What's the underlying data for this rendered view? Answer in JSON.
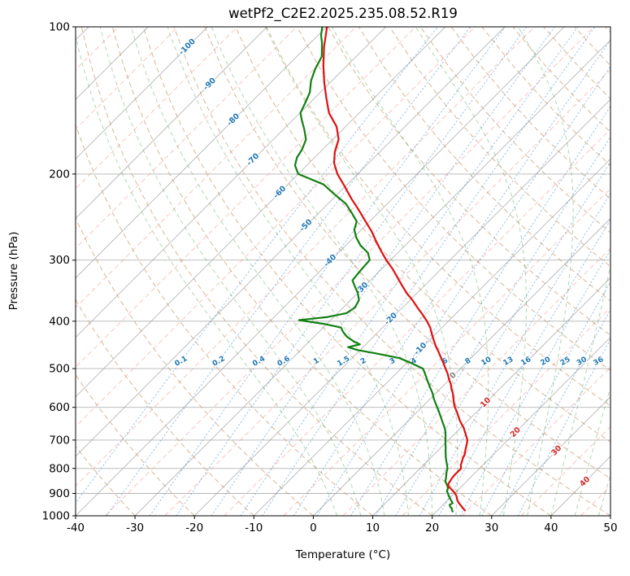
{
  "title": "wetPf2_C2E2.2025.235.08.52.R19",
  "axes": {
    "xlabel": "Temperature (°C)",
    "ylabel": "Pressure (hPa)",
    "xlim_c": [
      -40,
      50
    ],
    "ylim_hpa": [
      1000,
      100
    ],
    "x_ticks_c": [
      -40,
      -30,
      -20,
      -10,
      0,
      10,
      20,
      30,
      40,
      50
    ],
    "y_ticks_hpa": [
      100,
      200,
      300,
      400,
      500,
      600,
      700,
      800,
      900,
      1000
    ]
  },
  "chart_data": {
    "type": "line",
    "subtype": "skew-t-log-p",
    "title": "wetPf2_C2E2.2025.235.08.52.R19",
    "skew_deg": 45,
    "grid": true,
    "style": {
      "background": "#ffffff",
      "pressure_grid_color": "#b5b5b5",
      "isotherm_color": "#a0a0a0",
      "isotherm_minor_color": "#ef8e80",
      "mixing_color": "#4a90c8",
      "mixing_label_color": "#2077b4",
      "border_color": "#000000"
    },
    "series": [
      {
        "name": "temperature",
        "color": "#e01010",
        "points_p_t": [
          [
            975,
            24.6
          ],
          [
            965,
            23.9
          ],
          [
            950,
            22.9
          ],
          [
            938,
            22.1
          ],
          [
            925,
            21.4
          ],
          [
            912,
            20.8
          ],
          [
            900,
            20.1
          ],
          [
            888,
            19.2
          ],
          [
            878,
            18.4
          ],
          [
            868,
            17.6
          ],
          [
            858,
            17.3
          ],
          [
            850,
            17.2
          ],
          [
            838,
            17.0
          ],
          [
            825,
            16.9
          ],
          [
            810,
            16.9
          ],
          [
            800,
            16.9
          ],
          [
            788,
            16.3
          ],
          [
            775,
            15.9
          ],
          [
            760,
            15.4
          ],
          [
            750,
            15.2
          ],
          [
            738,
            14.7
          ],
          [
            725,
            14.2
          ],
          [
            712,
            13.7
          ],
          [
            700,
            13.2
          ],
          [
            688,
            12.4
          ],
          [
            675,
            11.5
          ],
          [
            662,
            10.6
          ],
          [
            650,
            9.6
          ],
          [
            638,
            8.6
          ],
          [
            625,
            7.6
          ],
          [
            612,
            6.6
          ],
          [
            600,
            5.6
          ],
          [
            588,
            4.7
          ],
          [
            575,
            3.8
          ],
          [
            562,
            2.9
          ],
          [
            550,
            1.9
          ],
          [
            538,
            1.0
          ],
          [
            525,
            -0.2
          ],
          [
            512,
            -1.3
          ],
          [
            500,
            -2.5
          ],
          [
            488,
            -3.7
          ],
          [
            475,
            -5.1
          ],
          [
            462,
            -6.5
          ],
          [
            450,
            -7.9
          ],
          [
            438,
            -9.2
          ],
          [
            425,
            -10.6
          ],
          [
            412,
            -12.0
          ],
          [
            400,
            -13.6
          ],
          [
            388,
            -15.4
          ],
          [
            375,
            -17.5
          ],
          [
            362,
            -19.6
          ],
          [
            350,
            -21.8
          ],
          [
            338,
            -23.8
          ],
          [
            325,
            -26.0
          ],
          [
            312,
            -28.3
          ],
          [
            300,
            -30.7
          ],
          [
            288,
            -33.0
          ],
          [
            275,
            -35.5
          ],
          [
            262,
            -38.0
          ],
          [
            250,
            -40.7
          ],
          [
            238,
            -43.5
          ],
          [
            225,
            -46.8
          ],
          [
            212,
            -50.1
          ],
          [
            200,
            -53.4
          ],
          [
            190,
            -55.8
          ],
          [
            180,
            -57.6
          ],
          [
            170,
            -59.0
          ],
          [
            160,
            -61.5
          ],
          [
            150,
            -65.1
          ],
          [
            140,
            -68.0
          ],
          [
            130,
            -71.0
          ],
          [
            120,
            -74.0
          ],
          [
            110,
            -77.0
          ],
          [
            100,
            -79.9
          ]
        ]
      },
      {
        "name": "dewpoint",
        "color": "#128012",
        "points_p_t": [
          [
            980,
            22.7
          ],
          [
            972,
            22.3
          ],
          [
            965,
            22.0
          ],
          [
            958,
            21.5
          ],
          [
            950,
            21.1
          ],
          [
            942,
            21.3
          ],
          [
            932,
            20.7
          ],
          [
            920,
            20.0
          ],
          [
            910,
            19.4
          ],
          [
            900,
            18.9
          ],
          [
            890,
            18.3
          ],
          [
            880,
            18.1
          ],
          [
            870,
            17.6
          ],
          [
            860,
            17.0
          ],
          [
            850,
            16.4
          ],
          [
            838,
            16.0
          ],
          [
            825,
            15.5
          ],
          [
            812,
            15.0
          ],
          [
            800,
            14.6
          ],
          [
            788,
            14.0
          ],
          [
            775,
            13.3
          ],
          [
            762,
            12.6
          ],
          [
            750,
            12.0
          ],
          [
            738,
            11.4
          ],
          [
            725,
            10.8
          ],
          [
            712,
            10.1
          ],
          [
            700,
            9.5
          ],
          [
            688,
            8.9
          ],
          [
            675,
            8.2
          ],
          [
            662,
            7.4
          ],
          [
            650,
            6.5
          ],
          [
            638,
            5.6
          ],
          [
            625,
            4.6
          ],
          [
            612,
            3.6
          ],
          [
            600,
            2.6
          ],
          [
            588,
            1.6
          ],
          [
            575,
            0.5
          ],
          [
            562,
            -0.5
          ],
          [
            550,
            -1.6
          ],
          [
            538,
            -2.7
          ],
          [
            525,
            -3.9
          ],
          [
            512,
            -5.1
          ],
          [
            500,
            -6.3
          ],
          [
            488,
            -9.0
          ],
          [
            476,
            -12.0
          ],
          [
            466,
            -16.5
          ],
          [
            458,
            -20.5
          ],
          [
            452,
            -22.5
          ],
          [
            446,
            -21.0
          ],
          [
            440,
            -22.5
          ],
          [
            430,
            -24.5
          ],
          [
            420,
            -26.0
          ],
          [
            412,
            -27.0
          ],
          [
            405,
            -30.5
          ],
          [
            398,
            -35.3
          ],
          [
            392,
            -31.0
          ],
          [
            385,
            -28.5
          ],
          [
            375,
            -28.0
          ],
          [
            362,
            -28.6
          ],
          [
            350,
            -30.0
          ],
          [
            340,
            -31.5
          ],
          [
            330,
            -33.0
          ],
          [
            315,
            -33.3
          ],
          [
            300,
            -33.5
          ],
          [
            290,
            -35.0
          ],
          [
            280,
            -37.5
          ],
          [
            270,
            -39.5
          ],
          [
            260,
            -41.2
          ],
          [
            250,
            -42.2
          ],
          [
            240,
            -44.5
          ],
          [
            230,
            -47.0
          ],
          [
            220,
            -50.5
          ],
          [
            210,
            -54.0
          ],
          [
            200,
            -60.0
          ],
          [
            192,
            -62.0
          ],
          [
            185,
            -63.0
          ],
          [
            178,
            -63.5
          ],
          [
            170,
            -64.5
          ],
          [
            162,
            -66.5
          ],
          [
            155,
            -68.5
          ],
          [
            150,
            -69.9
          ],
          [
            143,
            -70.8
          ],
          [
            136,
            -71.8
          ],
          [
            129,
            -73.5
          ],
          [
            122,
            -74.8
          ],
          [
            115,
            -75.8
          ],
          [
            108,
            -78.0
          ],
          [
            104,
            -79.5
          ],
          [
            100,
            -80.7
          ]
        ]
      }
    ],
    "isotherms": {
      "range_c": [
        -160,
        50
      ],
      "major_step_c": 10,
      "minor_step_c": 5,
      "labels": [
        {
          "t": -100,
          "p": 110
        },
        {
          "t": -90,
          "p": 131
        },
        {
          "t": -80,
          "p": 155
        },
        {
          "t": -70,
          "p": 187
        },
        {
          "t": -60,
          "p": 218
        },
        {
          "t": -50,
          "p": 255
        },
        {
          "t": -40,
          "p": 301
        },
        {
          "t": -30,
          "p": 343
        },
        {
          "t": -20,
          "p": 396
        },
        {
          "t": -10,
          "p": 456
        },
        {
          "t": 0,
          "p": 517
        },
        {
          "t": 10,
          "p": 587
        },
        {
          "t": 20,
          "p": 675
        },
        {
          "t": 30,
          "p": 736
        },
        {
          "t": 40,
          "p": 852
        }
      ],
      "label_colors": {
        "negative": "#2077b4",
        "zero": "#808080",
        "positive": "#d62728"
      }
    },
    "dry_adiabats_theta_c": {
      "start": -40,
      "end": 200,
      "step": 10,
      "color": "#c49a6c"
    },
    "moist_adiabats_t0_c": {
      "start": 4,
      "end": 48,
      "step": 4,
      "color": "#3d9b3d"
    },
    "mixing_ratio_g_per_kg": [
      0.1,
      0.2,
      0.4,
      0.6,
      1,
      1.5,
      2,
      3,
      4,
      6,
      8,
      10,
      13,
      16,
      20,
      25,
      30,
      36
    ],
    "mixing_label_pressure_hpa": 483
  }
}
